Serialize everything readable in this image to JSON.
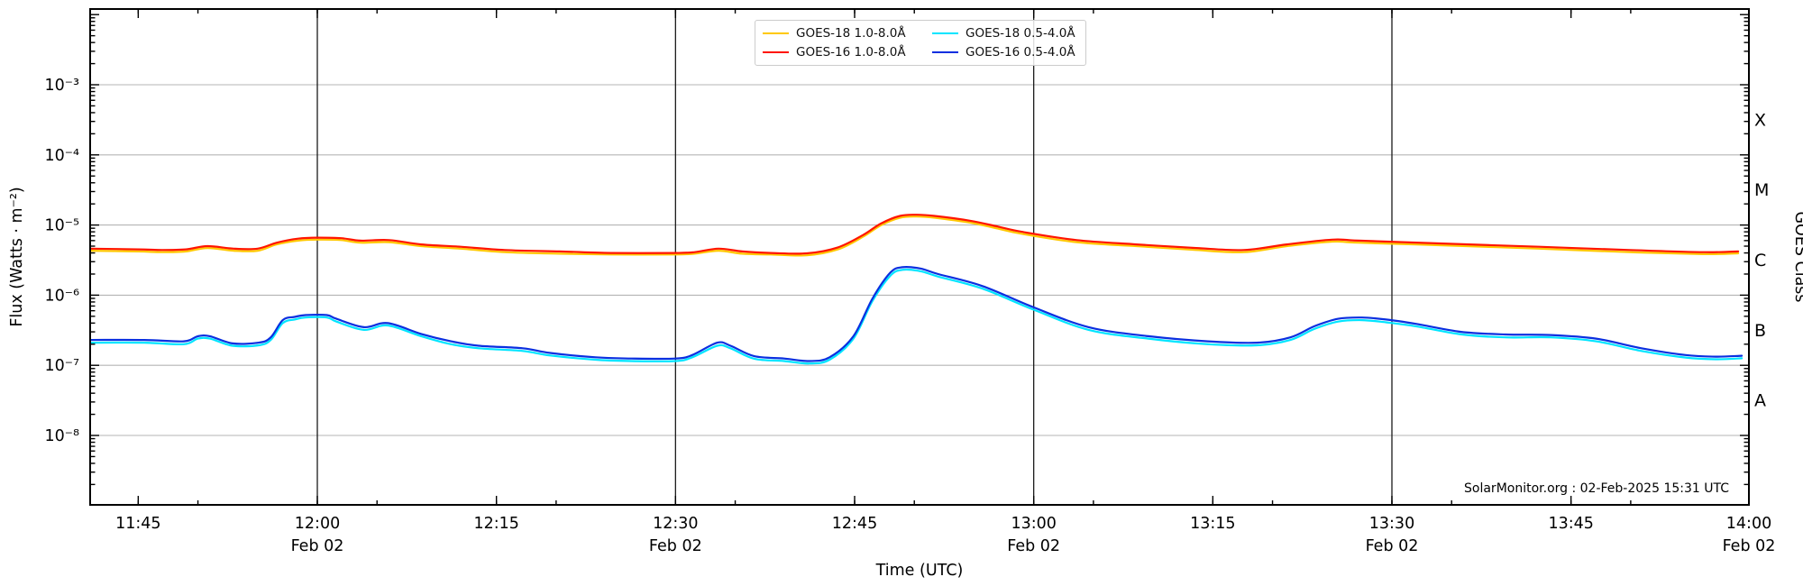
{
  "annotation": {
    "text": "SolarMonitor.org : 02-Feb-2025 15:31 UTC"
  },
  "axes": {
    "x": {
      "title": "Time (UTC)",
      "start_ref": "11:40",
      "range_minutes": [
        1,
        140
      ],
      "minor_tick_minutes": 5,
      "ticks": [
        {
          "time": "11:45",
          "label": "11:45"
        },
        {
          "time": "12:00",
          "label": "12:00",
          "sub": "Feb 02",
          "gridline": true
        },
        {
          "time": "12:15",
          "label": "12:15"
        },
        {
          "time": "12:30",
          "label": "12:30",
          "sub": "Feb 02",
          "gridline": true
        },
        {
          "time": "12:45",
          "label": "12:45"
        },
        {
          "time": "13:00",
          "label": "13:00",
          "sub": "Feb 02",
          "gridline": true
        },
        {
          "time": "13:15",
          "label": "13:15"
        },
        {
          "time": "13:30",
          "label": "13:30",
          "sub": "Feb 02",
          "gridline": true
        },
        {
          "time": "13:45",
          "label": "13:45"
        },
        {
          "time": "14:00",
          "label": "14:00",
          "sub": "Feb 02"
        }
      ]
    },
    "y": {
      "title": "Flux (Watts · m⁻²)",
      "scale": "log",
      "range_exponents": [
        -9,
        -2
      ],
      "ticks": [
        {
          "exp": -3,
          "label": "10⁻³"
        },
        {
          "exp": -4,
          "label": "10⁻⁴"
        },
        {
          "exp": -5,
          "label": "10⁻⁵"
        },
        {
          "exp": -6,
          "label": "10⁻⁶"
        },
        {
          "exp": -7,
          "label": "10⁻⁷"
        },
        {
          "exp": -8,
          "label": "10⁻⁸"
        }
      ]
    },
    "y2": {
      "title": "GOES Class",
      "classes": [
        {
          "label": "X",
          "exp": -3.5
        },
        {
          "label": "M",
          "exp": -4.5
        },
        {
          "label": "C",
          "exp": -5.5
        },
        {
          "label": "B",
          "exp": -6.5
        },
        {
          "label": "A",
          "exp": -7.5
        }
      ]
    }
  },
  "legend": {
    "items": [
      {
        "label": "GOES-18 1.0-8.0Å",
        "color": "#ffc800"
      },
      {
        "label": "GOES-16 1.0-8.0Å",
        "color": "#ff1500"
      },
      {
        "label": "GOES-18 0.5-4.0Å",
        "color": "#00e5ff"
      },
      {
        "label": "GOES-16 0.5-4.0Å",
        "color": "#0a2fe0"
      }
    ]
  },
  "chart_data": {
    "type": "line",
    "title": "",
    "xlabel": "Time (UTC)",
    "ylabel": "Flux (Watts · m⁻²)",
    "x_unit": "minutes after 11:40 UTC",
    "y_scale": "log",
    "ylim_exponents": [
      -9,
      -2
    ],
    "gridlines": {
      "horizontal_exponents": [
        -3,
        -4,
        -5,
        -6,
        -7,
        -8
      ],
      "vertical_times": [
        "12:00",
        "12:30",
        "13:00",
        "13:30"
      ]
    },
    "series": [
      {
        "name": "GOES-18 1.0-8.0Å",
        "color": "#ffc800",
        "points": [
          [
            1,
            4.3e-06
          ],
          [
            5,
            4.2e-06
          ],
          [
            7,
            4.1e-06
          ],
          [
            9,
            4.2e-06
          ],
          [
            10.8,
            4.7e-06
          ],
          [
            13,
            4.3e-06
          ],
          [
            15,
            4.3e-06
          ],
          [
            16.6,
            5.3e-06
          ],
          [
            18.4,
            6e-06
          ],
          [
            20,
            6.2e-06
          ],
          [
            22,
            6.1e-06
          ],
          [
            23.6,
            5.6e-06
          ],
          [
            26,
            5.7e-06
          ],
          [
            28.7,
            5e-06
          ],
          [
            32,
            4.6e-06
          ],
          [
            35.7,
            4.1e-06
          ],
          [
            40.3,
            3.9e-06
          ],
          [
            44.6,
            3.8e-06
          ],
          [
            50,
            3.8e-06
          ],
          [
            51.6,
            3.9e-06
          ],
          [
            53.6,
            4.3e-06
          ],
          [
            55.6,
            3.9e-06
          ],
          [
            58,
            3.8e-06
          ],
          [
            61,
            3.7e-06
          ],
          [
            63.6,
            4.5e-06
          ],
          [
            65.7,
            6.8e-06
          ],
          [
            67.2,
            9.9e-06
          ],
          [
            68.8,
            1.27e-05
          ],
          [
            70.2,
            1.32e-05
          ],
          [
            71.7,
            1.27e-05
          ],
          [
            74.7,
            1.08e-05
          ],
          [
            77,
            8.9e-06
          ],
          [
            79,
            7.5e-06
          ],
          [
            83.6,
            5.7e-06
          ],
          [
            88.6,
            5e-06
          ],
          [
            93.6,
            4.4e-06
          ],
          [
            97.6,
            4.1e-06
          ],
          [
            101.2,
            5e-06
          ],
          [
            105,
            5.8e-06
          ],
          [
            107.2,
            5.6e-06
          ],
          [
            114.8,
            5.1e-06
          ],
          [
            122.3,
            4.6e-06
          ],
          [
            129.9,
            4.1e-06
          ],
          [
            136.1,
            3.85e-06
          ],
          [
            139,
            3.95e-06
          ]
        ]
      },
      {
        "name": "GOES-16 1.0-8.0Å",
        "color": "#ff1500",
        "points": [
          [
            1,
            4.6e-06
          ],
          [
            5,
            4.5e-06
          ],
          [
            7,
            4.4e-06
          ],
          [
            9,
            4.5e-06
          ],
          [
            10.8,
            5e-06
          ],
          [
            13,
            4.6e-06
          ],
          [
            15,
            4.6e-06
          ],
          [
            16.6,
            5.6e-06
          ],
          [
            18.4,
            6.4e-06
          ],
          [
            20,
            6.6e-06
          ],
          [
            22,
            6.5e-06
          ],
          [
            23.6,
            6e-06
          ],
          [
            26,
            6.1e-06
          ],
          [
            28.7,
            5.3e-06
          ],
          [
            32,
            4.9e-06
          ],
          [
            35.7,
            4.4e-06
          ],
          [
            40.3,
            4.2e-06
          ],
          [
            44.6,
            4e-06
          ],
          [
            50,
            4e-06
          ],
          [
            51.6,
            4.1e-06
          ],
          [
            53.6,
            4.6e-06
          ],
          [
            55.6,
            4.2e-06
          ],
          [
            58,
            4e-06
          ],
          [
            61,
            3.95e-06
          ],
          [
            63.6,
            4.8e-06
          ],
          [
            65.7,
            7.2e-06
          ],
          [
            67.2,
            1.05e-05
          ],
          [
            68.8,
            1.35e-05
          ],
          [
            70.2,
            1.4e-05
          ],
          [
            71.7,
            1.35e-05
          ],
          [
            74.7,
            1.15e-05
          ],
          [
            77,
            9.5e-06
          ],
          [
            79,
            8e-06
          ],
          [
            83.6,
            6.1e-06
          ],
          [
            88.6,
            5.3e-06
          ],
          [
            93.6,
            4.7e-06
          ],
          [
            97.6,
            4.4e-06
          ],
          [
            101.2,
            5.3e-06
          ],
          [
            105,
            6.2e-06
          ],
          [
            107.2,
            6e-06
          ],
          [
            114.8,
            5.4e-06
          ],
          [
            122.3,
            4.9e-06
          ],
          [
            129.9,
            4.4e-06
          ],
          [
            136.1,
            4.1e-06
          ],
          [
            139,
            4.2e-06
          ]
        ]
      },
      {
        "name": "GOES-18 0.5-4.0Å",
        "color": "#00e5ff",
        "points": [
          [
            1,
            2.1e-07
          ],
          [
            5.5,
            2.1e-07
          ],
          [
            8.8,
            2e-07
          ],
          [
            10,
            2.4e-07
          ],
          [
            11,
            2.4e-07
          ],
          [
            12.9,
            1.9e-07
          ],
          [
            15.1,
            1.93e-07
          ],
          [
            16.1,
            2.3e-07
          ],
          [
            17.1,
            4e-07
          ],
          [
            18.1,
            4.5e-07
          ],
          [
            19,
            4.8e-07
          ],
          [
            20.8,
            4.8e-07
          ],
          [
            21.6,
            4.2e-07
          ],
          [
            23.9,
            3.2e-07
          ],
          [
            25.9,
            3.7e-07
          ],
          [
            28.7,
            2.6e-07
          ],
          [
            31.2,
            2e-07
          ],
          [
            33.5,
            1.75e-07
          ],
          [
            37.2,
            1.6e-07
          ],
          [
            39.5,
            1.38e-07
          ],
          [
            43.3,
            1.2e-07
          ],
          [
            46.3,
            1.15e-07
          ],
          [
            50,
            1.15e-07
          ],
          [
            51.4,
            1.3e-07
          ],
          [
            53.5,
            1.9e-07
          ],
          [
            54.6,
            1.75e-07
          ],
          [
            56.6,
            1.24e-07
          ],
          [
            59.1,
            1.15e-07
          ],
          [
            61.2,
            1.06e-07
          ],
          [
            62.9,
            1.2e-07
          ],
          [
            64.9,
            2.4e-07
          ],
          [
            66.5,
            8.3e-07
          ],
          [
            68,
            1.9e-06
          ],
          [
            69,
            2.3e-06
          ],
          [
            70.5,
            2.2e-06
          ],
          [
            72,
            1.84e-06
          ],
          [
            75.7,
            1.24e-06
          ],
          [
            79.9,
            6.3e-07
          ],
          [
            84.6,
            3.2e-07
          ],
          [
            89.6,
            2.4e-07
          ],
          [
            94.6,
            2e-07
          ],
          [
            98.7,
            1.93e-07
          ],
          [
            101.5,
            2.3e-07
          ],
          [
            103.5,
            3.3e-07
          ],
          [
            105.5,
            4.2e-07
          ],
          [
            107.5,
            4.4e-07
          ],
          [
            109.5,
            4.1e-07
          ],
          [
            112,
            3.6e-07
          ],
          [
            115.8,
            2.76e-07
          ],
          [
            119.5,
            2.5e-07
          ],
          [
            123.3,
            2.5e-07
          ],
          [
            127.1,
            2.2e-07
          ],
          [
            130.9,
            1.6e-07
          ],
          [
            134.6,
            1.29e-07
          ],
          [
            137.1,
            1.22e-07
          ],
          [
            139.3,
            1.26e-07
          ]
        ]
      },
      {
        "name": "GOES-16 0.5-4.0Å",
        "color": "#0a2fe0",
        "points": [
          [
            1,
            2.3e-07
          ],
          [
            5.5,
            2.3e-07
          ],
          [
            8.8,
            2.2e-07
          ],
          [
            10,
            2.6e-07
          ],
          [
            11,
            2.6e-07
          ],
          [
            12.9,
            2.05e-07
          ],
          [
            15.1,
            2.1e-07
          ],
          [
            16.1,
            2.5e-07
          ],
          [
            17.1,
            4.4e-07
          ],
          [
            18.1,
            4.9e-07
          ],
          [
            19,
            5.2e-07
          ],
          [
            20.8,
            5.2e-07
          ],
          [
            21.6,
            4.6e-07
          ],
          [
            23.9,
            3.5e-07
          ],
          [
            25.9,
            4e-07
          ],
          [
            28.7,
            2.8e-07
          ],
          [
            31.2,
            2.2e-07
          ],
          [
            33.5,
            1.9e-07
          ],
          [
            37.2,
            1.75e-07
          ],
          [
            39.5,
            1.5e-07
          ],
          [
            43.3,
            1.3e-07
          ],
          [
            46.3,
            1.25e-07
          ],
          [
            50,
            1.25e-07
          ],
          [
            51.4,
            1.4e-07
          ],
          [
            53.5,
            2.1e-07
          ],
          [
            54.6,
            1.9e-07
          ],
          [
            56.6,
            1.35e-07
          ],
          [
            59.1,
            1.25e-07
          ],
          [
            61.2,
            1.15e-07
          ],
          [
            62.9,
            1.3e-07
          ],
          [
            64.9,
            2.6e-07
          ],
          [
            66.5,
            9e-07
          ],
          [
            68,
            2.1e-06
          ],
          [
            69,
            2.5e-06
          ],
          [
            70.5,
            2.4e-06
          ],
          [
            72,
            2e-06
          ],
          [
            75.7,
            1.35e-06
          ],
          [
            79.9,
            6.8e-07
          ],
          [
            84.6,
            3.5e-07
          ],
          [
            89.6,
            2.6e-07
          ],
          [
            94.6,
            2.2e-07
          ],
          [
            98.7,
            2.1e-07
          ],
          [
            101.5,
            2.5e-07
          ],
          [
            103.5,
            3.6e-07
          ],
          [
            105.5,
            4.6e-07
          ],
          [
            107.5,
            4.8e-07
          ],
          [
            109.5,
            4.5e-07
          ],
          [
            112,
            3.9e-07
          ],
          [
            115.8,
            3e-07
          ],
          [
            119.5,
            2.75e-07
          ],
          [
            123.3,
            2.7e-07
          ],
          [
            127.1,
            2.4e-07
          ],
          [
            130.9,
            1.75e-07
          ],
          [
            134.6,
            1.4e-07
          ],
          [
            137.1,
            1.33e-07
          ],
          [
            139.3,
            1.37e-07
          ]
        ]
      }
    ]
  },
  "style": {
    "hgrid_color": "#b5b5b5",
    "vline_color": "#1a1a1a",
    "spine_color": "#000000"
  }
}
